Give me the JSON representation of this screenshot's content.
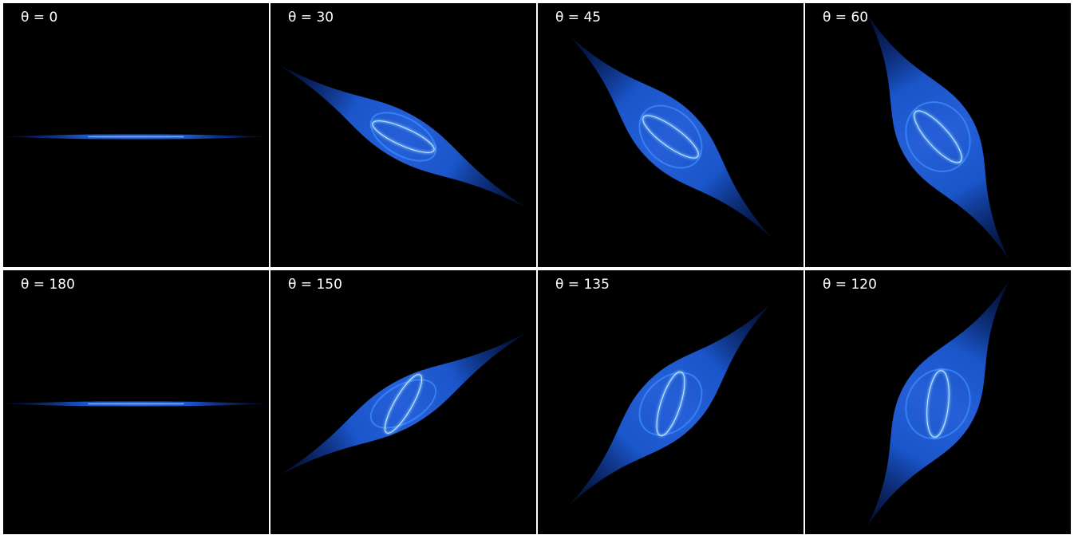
{
  "panels": [
    {
      "label": "θ = 0"
    },
    {
      "label": "θ = 30"
    },
    {
      "label": "θ = 45"
    },
    {
      "label": "θ = 60"
    },
    {
      "label": "θ = 180"
    },
    {
      "label": "θ = 150"
    },
    {
      "label": "θ = 135"
    },
    {
      "label": "θ = 120"
    }
  ]
}
